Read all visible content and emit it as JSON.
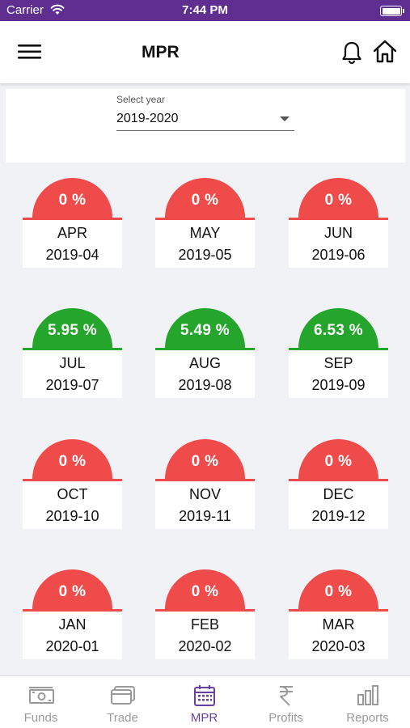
{
  "status_bar": {
    "carrier": "Carrier",
    "time": "7:44 PM"
  },
  "header": {
    "title": "MPR"
  },
  "year_selector": {
    "label": "Select year",
    "value": "2019-2020"
  },
  "colors": {
    "positive": "#25a52b",
    "zero": "#ef4b4b",
    "brand": "#5e2e91",
    "active_tab": "#6a3fa4"
  },
  "months": [
    {
      "name": "APR",
      "code": "2019-04",
      "percent": "0 %",
      "status": "zero"
    },
    {
      "name": "MAY",
      "code": "2019-05",
      "percent": "0 %",
      "status": "zero"
    },
    {
      "name": "JUN",
      "code": "2019-06",
      "percent": "0 %",
      "status": "zero"
    },
    {
      "name": "JUL",
      "code": "2019-07",
      "percent": "5.95 %",
      "status": "positive"
    },
    {
      "name": "AUG",
      "code": "2019-08",
      "percent": "5.49 %",
      "status": "positive"
    },
    {
      "name": "SEP",
      "code": "2019-09",
      "percent": "6.53 %",
      "status": "positive"
    },
    {
      "name": "OCT",
      "code": "2019-10",
      "percent": "0 %",
      "status": "zero"
    },
    {
      "name": "NOV",
      "code": "2019-11",
      "percent": "0 %",
      "status": "zero"
    },
    {
      "name": "DEC",
      "code": "2019-12",
      "percent": "0 %",
      "status": "zero"
    },
    {
      "name": "JAN",
      "code": "2020-01",
      "percent": "0 %",
      "status": "zero"
    },
    {
      "name": "FEB",
      "code": "2020-02",
      "percent": "0 %",
      "status": "zero"
    },
    {
      "name": "MAR",
      "code": "2020-03",
      "percent": "0 %",
      "status": "zero"
    }
  ],
  "tabs": [
    {
      "label": "Funds",
      "icon": "funds-icon",
      "active": false
    },
    {
      "label": "Trade",
      "icon": "trade-icon",
      "active": false
    },
    {
      "label": "MPR",
      "icon": "calendar-icon",
      "active": true
    },
    {
      "label": "Profits",
      "icon": "rupee-icon",
      "active": false
    },
    {
      "label": "Reports",
      "icon": "bar-chart-icon",
      "active": false
    }
  ]
}
